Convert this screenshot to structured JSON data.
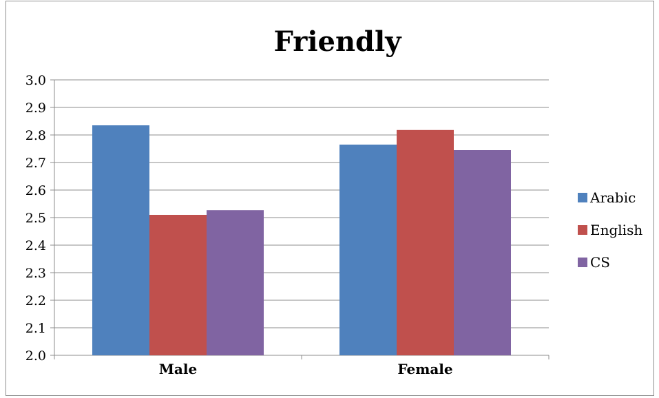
{
  "chart_data": {
    "type": "bar",
    "title": "Friendly",
    "xlabel": "",
    "ylabel": "",
    "categories": [
      "Male",
      "Female"
    ],
    "series": [
      {
        "name": "Arabic",
        "values": [
          2.835,
          2.765
        ],
        "color": "#4F81BD"
      },
      {
        "name": "English",
        "values": [
          2.51,
          2.818
        ],
        "color": "#C0504D"
      },
      {
        "name": "CS",
        "values": [
          2.527,
          2.745
        ],
        "color": "#8064A2"
      }
    ],
    "ylim": [
      2.0,
      3.0
    ],
    "yticks": [
      "2.0",
      "2.1",
      "2.2",
      "2.3",
      "2.4",
      "2.5",
      "2.6",
      "2.7",
      "2.8",
      "2.9",
      "3.0"
    ],
    "grid": true,
    "legend_position": "right"
  }
}
